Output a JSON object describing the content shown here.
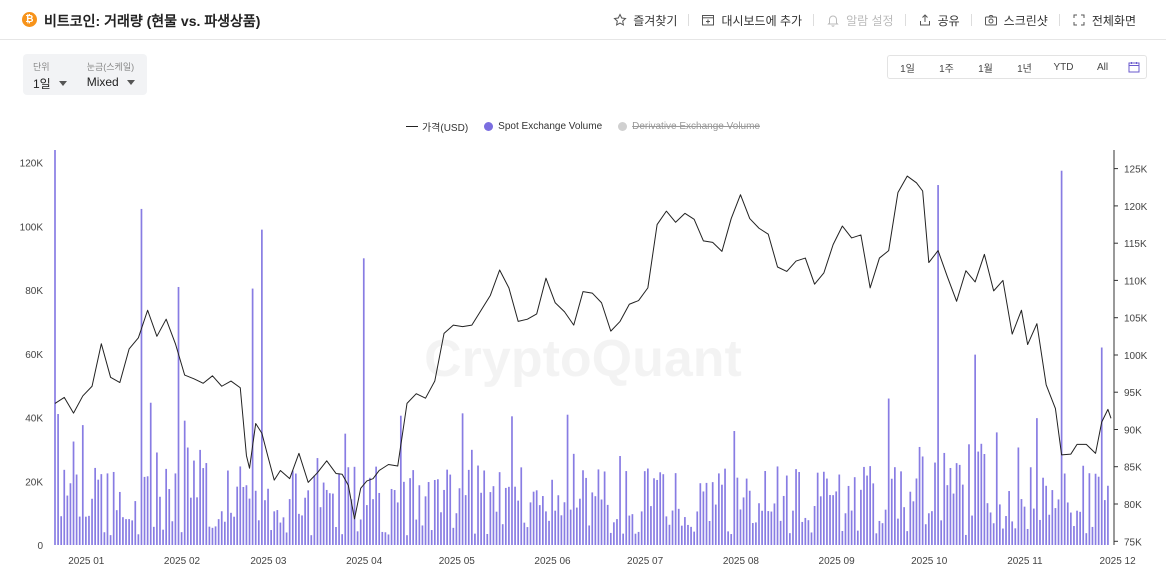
{
  "header": {
    "logo_glyph": "₿",
    "title": "비트코인: 거래량 (현물 vs. 파생상품)",
    "actions": [
      {
        "label": "즐겨찾기",
        "icon": "star-icon"
      },
      {
        "label": "대시보드에 추가",
        "icon": "dashboard-add-icon"
      },
      {
        "label": "알람 설정",
        "icon": "bell-icon",
        "disabled": true
      },
      {
        "label": "공유",
        "icon": "share-icon"
      },
      {
        "label": "스크린샷",
        "icon": "camera-icon"
      },
      {
        "label": "전체화면",
        "icon": "fullscreen-icon"
      }
    ]
  },
  "controls": {
    "unit": {
      "label": "단위",
      "value": "1일"
    },
    "scale": {
      "label": "눈금(스케일)",
      "value": "Mixed"
    }
  },
  "ranges": {
    "r1d": "1일",
    "r1w": "1주",
    "r1m": "1월",
    "r1y": "1년",
    "ytd": "YTD",
    "all": "All"
  },
  "watermark": "CryptoQuant",
  "colors": {
    "spot": "#7b6ee0",
    "price_line": "#222222",
    "derivative_disabled": "#d0d0d0",
    "bitcoin": "#f7931a"
  },
  "chart_data": {
    "type": "bar",
    "legend": [
      {
        "name": "가격(USD)",
        "kind": "line"
      },
      {
        "name": "Spot Exchange Volume",
        "kind": "bar",
        "visible": true
      },
      {
        "name": "Derivative Exchange Volume",
        "kind": "bar",
        "visible": false
      }
    ],
    "x_ticks": [
      "2025 01",
      "2025 02",
      "2025 03",
      "2025 04",
      "2025 05",
      "2025 06",
      "2025 07",
      "2025 08",
      "2025 09",
      "2025 10",
      "2025 11",
      "2025 12"
    ],
    "x_range_days": [
      0,
      338
    ],
    "y_left": {
      "ticks": [
        "0",
        "20K",
        "40K",
        "60K",
        "80K",
        "100K",
        "120K"
      ],
      "range": [
        0,
        124000
      ]
    },
    "y_right": {
      "ticks": [
        "75K",
        "80K",
        "85K",
        "90K",
        "95K",
        "100K",
        "105K",
        "110K",
        "115K",
        "120K",
        "125K"
      ],
      "range": [
        74500,
        127500
      ]
    },
    "grid": false,
    "legend_placement": "top-center",
    "spot_spikes": [
      [
        -3,
        124000
      ],
      [
        25,
        105500
      ],
      [
        37,
        81000
      ],
      [
        61,
        80500
      ],
      [
        64,
        99000
      ],
      [
        97,
        90000
      ],
      [
        283,
        113000
      ],
      [
        323,
        117500
      ],
      [
        336,
        62000
      ]
    ],
    "price_keypoints": [
      [
        -3,
        93500
      ],
      [
        0,
        94300
      ],
      [
        3,
        92200
      ],
      [
        6,
        94500
      ],
      [
        9,
        95800
      ],
      [
        12,
        101500
      ],
      [
        15,
        97000
      ],
      [
        18,
        96300
      ],
      [
        21,
        100800
      ],
      [
        24,
        102300
      ],
      [
        27,
        106000
      ],
      [
        30,
        102500
      ],
      [
        33,
        104800
      ],
      [
        36,
        101500
      ],
      [
        39,
        97300
      ],
      [
        42,
        96800
      ],
      [
        45,
        96200
      ],
      [
        48,
        97200
      ],
      [
        51,
        95800
      ],
      [
        54,
        96500
      ],
      [
        57,
        95600
      ],
      [
        59,
        86500
      ],
      [
        60,
        84800
      ],
      [
        62,
        90800
      ],
      [
        64,
        89500
      ],
      [
        66,
        86300
      ],
      [
        68,
        83200
      ],
      [
        70,
        84500
      ],
      [
        73,
        83400
      ],
      [
        76,
        86800
      ],
      [
        79,
        82900
      ],
      [
        82,
        84200
      ],
      [
        85,
        85800
      ],
      [
        88,
        84100
      ],
      [
        90,
        84000
      ],
      [
        92,
        82500
      ],
      [
        94,
        78000
      ],
      [
        96,
        82100
      ],
      [
        98,
        83100
      ],
      [
        100,
        83400
      ],
      [
        102,
        84500
      ],
      [
        105,
        85300
      ],
      [
        108,
        85100
      ],
      [
        111,
        93500
      ],
      [
        114,
        94800
      ],
      [
        117,
        94200
      ],
      [
        120,
        96500
      ],
      [
        123,
        102900
      ],
      [
        126,
        104000
      ],
      [
        129,
        103800
      ],
      [
        132,
        104000
      ],
      [
        135,
        106000
      ],
      [
        138,
        108000
      ],
      [
        141,
        111400
      ],
      [
        144,
        109000
      ],
      [
        147,
        104500
      ],
      [
        150,
        104800
      ],
      [
        153,
        105500
      ],
      [
        156,
        110300
      ],
      [
        159,
        107000
      ],
      [
        162,
        105800
      ],
      [
        165,
        104000
      ],
      [
        168,
        108500
      ],
      [
        171,
        108300
      ],
      [
        174,
        107000
      ],
      [
        177,
        103200
      ],
      [
        180,
        104500
      ],
      [
        183,
        106800
      ],
      [
        186,
        107300
      ],
      [
        189,
        109000
      ],
      [
        192,
        117500
      ],
      [
        195,
        119300
      ],
      [
        198,
        117800
      ],
      [
        201,
        119000
      ],
      [
        204,
        118200
      ],
      [
        207,
        115300
      ],
      [
        210,
        115100
      ],
      [
        213,
        113900
      ],
      [
        216,
        118300
      ],
      [
        219,
        121500
      ],
      [
        222,
        118300
      ],
      [
        225,
        117000
      ],
      [
        228,
        116200
      ],
      [
        231,
        111800
      ],
      [
        234,
        111200
      ],
      [
        237,
        112600
      ],
      [
        240,
        113000
      ],
      [
        243,
        109500
      ],
      [
        246,
        111000
      ],
      [
        249,
        114800
      ],
      [
        252,
        117300
      ],
      [
        255,
        115700
      ],
      [
        258,
        116100
      ],
      [
        261,
        109000
      ],
      [
        264,
        113000
      ],
      [
        267,
        114000
      ],
      [
        270,
        121800
      ],
      [
        273,
        124000
      ],
      [
        276,
        123100
      ],
      [
        278,
        122000
      ],
      [
        280,
        112400
      ],
      [
        283,
        114000
      ],
      [
        286,
        110500
      ],
      [
        289,
        107200
      ],
      [
        292,
        111300
      ],
      [
        295,
        109800
      ],
      [
        298,
        113500
      ],
      [
        301,
        108600
      ],
      [
        304,
        110000
      ],
      [
        307,
        102800
      ],
      [
        310,
        106000
      ],
      [
        312,
        101400
      ],
      [
        315,
        104200
      ],
      [
        318,
        96000
      ],
      [
        321,
        92800
      ],
      [
        323,
        86600
      ],
      [
        326,
        86700
      ],
      [
        328,
        88000
      ],
      [
        331,
        88000
      ],
      [
        334,
        86800
      ],
      [
        336,
        91000
      ],
      [
        338,
        92700
      ],
      [
        339,
        91500
      ]
    ]
  }
}
